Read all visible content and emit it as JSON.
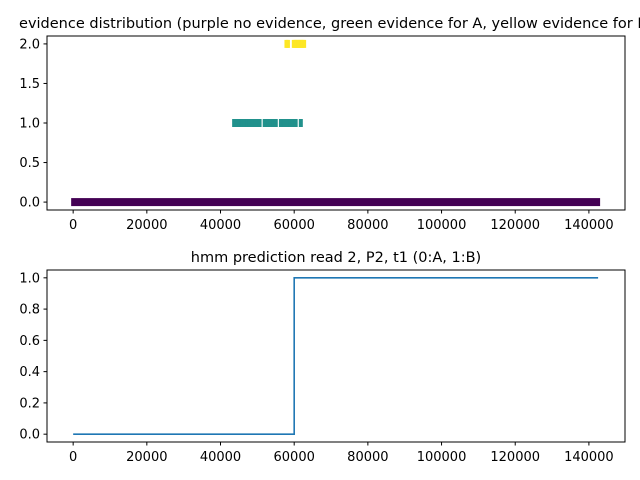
{
  "chart_data": [
    {
      "type": "scatter",
      "title": "evidence distribution (purple no evidence, green evidence for A, yellow evidence for B)",
      "xlabel": "",
      "ylabel": "",
      "xlim": [
        -7100,
        149800
      ],
      "ylim": [
        -0.1,
        2.1
      ],
      "xticks": [
        0,
        20000,
        40000,
        60000,
        80000,
        100000,
        120000,
        140000
      ],
      "xtick_labels": [
        "0",
        "20000",
        "40000",
        "60000",
        "80000",
        "100000",
        "120000",
        "140000"
      ],
      "yticks": [
        0.0,
        0.5,
        1.0,
        1.5,
        2.0
      ],
      "ytick_labels": [
        "0.0",
        "0.5",
        "1.0",
        "1.5",
        "2.0"
      ],
      "grid": false,
      "colors": {
        "none": "#440154",
        "A": "#21918c",
        "B": "#fde725"
      },
      "series": [
        {
          "y": 0,
          "color_key": "none",
          "x": [
            0,
            142500
          ],
          "continuous": true
        },
        {
          "y": 1,
          "color_key": "A",
          "x": [
            43700,
            44100,
            44500,
            45200,
            45600,
            46000,
            46400,
            47300,
            48000,
            48800,
            49500,
            50000,
            50600,
            52000,
            53000,
            53700,
            54400,
            55000,
            56400,
            57000,
            57500,
            58300,
            59000,
            59600,
            60400,
            61800
          ]
        },
        {
          "y": 2,
          "color_key": "B",
          "x": [
            57900,
            58300,
            59900,
            60300,
            60700,
            61100,
            61500,
            61900,
            62300,
            62700
          ]
        }
      ]
    },
    {
      "type": "line",
      "title": "hmm prediction read 2, P2, t1 (0:A, 1:B)",
      "xlabel": "",
      "ylabel": "",
      "xlim": [
        -7100,
        149800
      ],
      "ylim": [
        -0.05,
        1.05
      ],
      "xticks": [
        0,
        20000,
        40000,
        60000,
        80000,
        100000,
        120000,
        140000
      ],
      "xtick_labels": [
        "0",
        "20000",
        "40000",
        "60000",
        "80000",
        "100000",
        "120000",
        "140000"
      ],
      "yticks": [
        0.0,
        0.2,
        0.4,
        0.6,
        0.8,
        1.0
      ],
      "ytick_labels": [
        "0.0",
        "0.2",
        "0.4",
        "0.6",
        "0.8",
        "1.0"
      ],
      "grid": false,
      "color": "#1f77b4",
      "series": [
        {
          "x": [
            0,
            60000,
            60000,
            142500
          ],
          "y": [
            0,
            0,
            1,
            1
          ]
        }
      ]
    }
  ]
}
